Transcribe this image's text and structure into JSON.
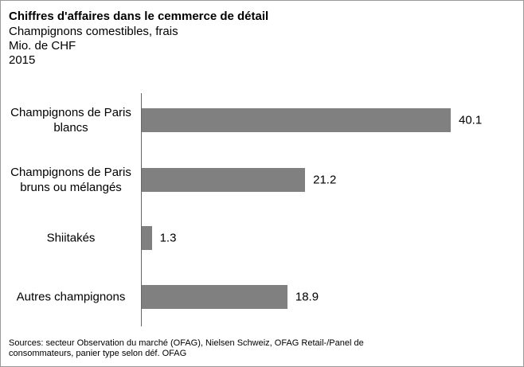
{
  "chart_data": {
    "type": "bar",
    "orientation": "horizontal",
    "title": "Chiffres d'affaires dans le cemmerce de détail",
    "subtitle": [
      "Champignons comestibles, frais",
      "Mio. de CHF",
      "2015"
    ],
    "categories": [
      "Champignons de Paris blancs",
      "Champignons de Paris bruns ou mélangés",
      "Shiitakés",
      "Autres champignons"
    ],
    "values": [
      40.1,
      21.2,
      1.3,
      18.9
    ],
    "color": "#808080",
    "source": [
      "Sources: secteur Observation du marché (OFAG), Nielsen Schweiz, OFAG Retail-/Panel de",
      "consommateurs, panier type selon déf. OFAG"
    ]
  }
}
